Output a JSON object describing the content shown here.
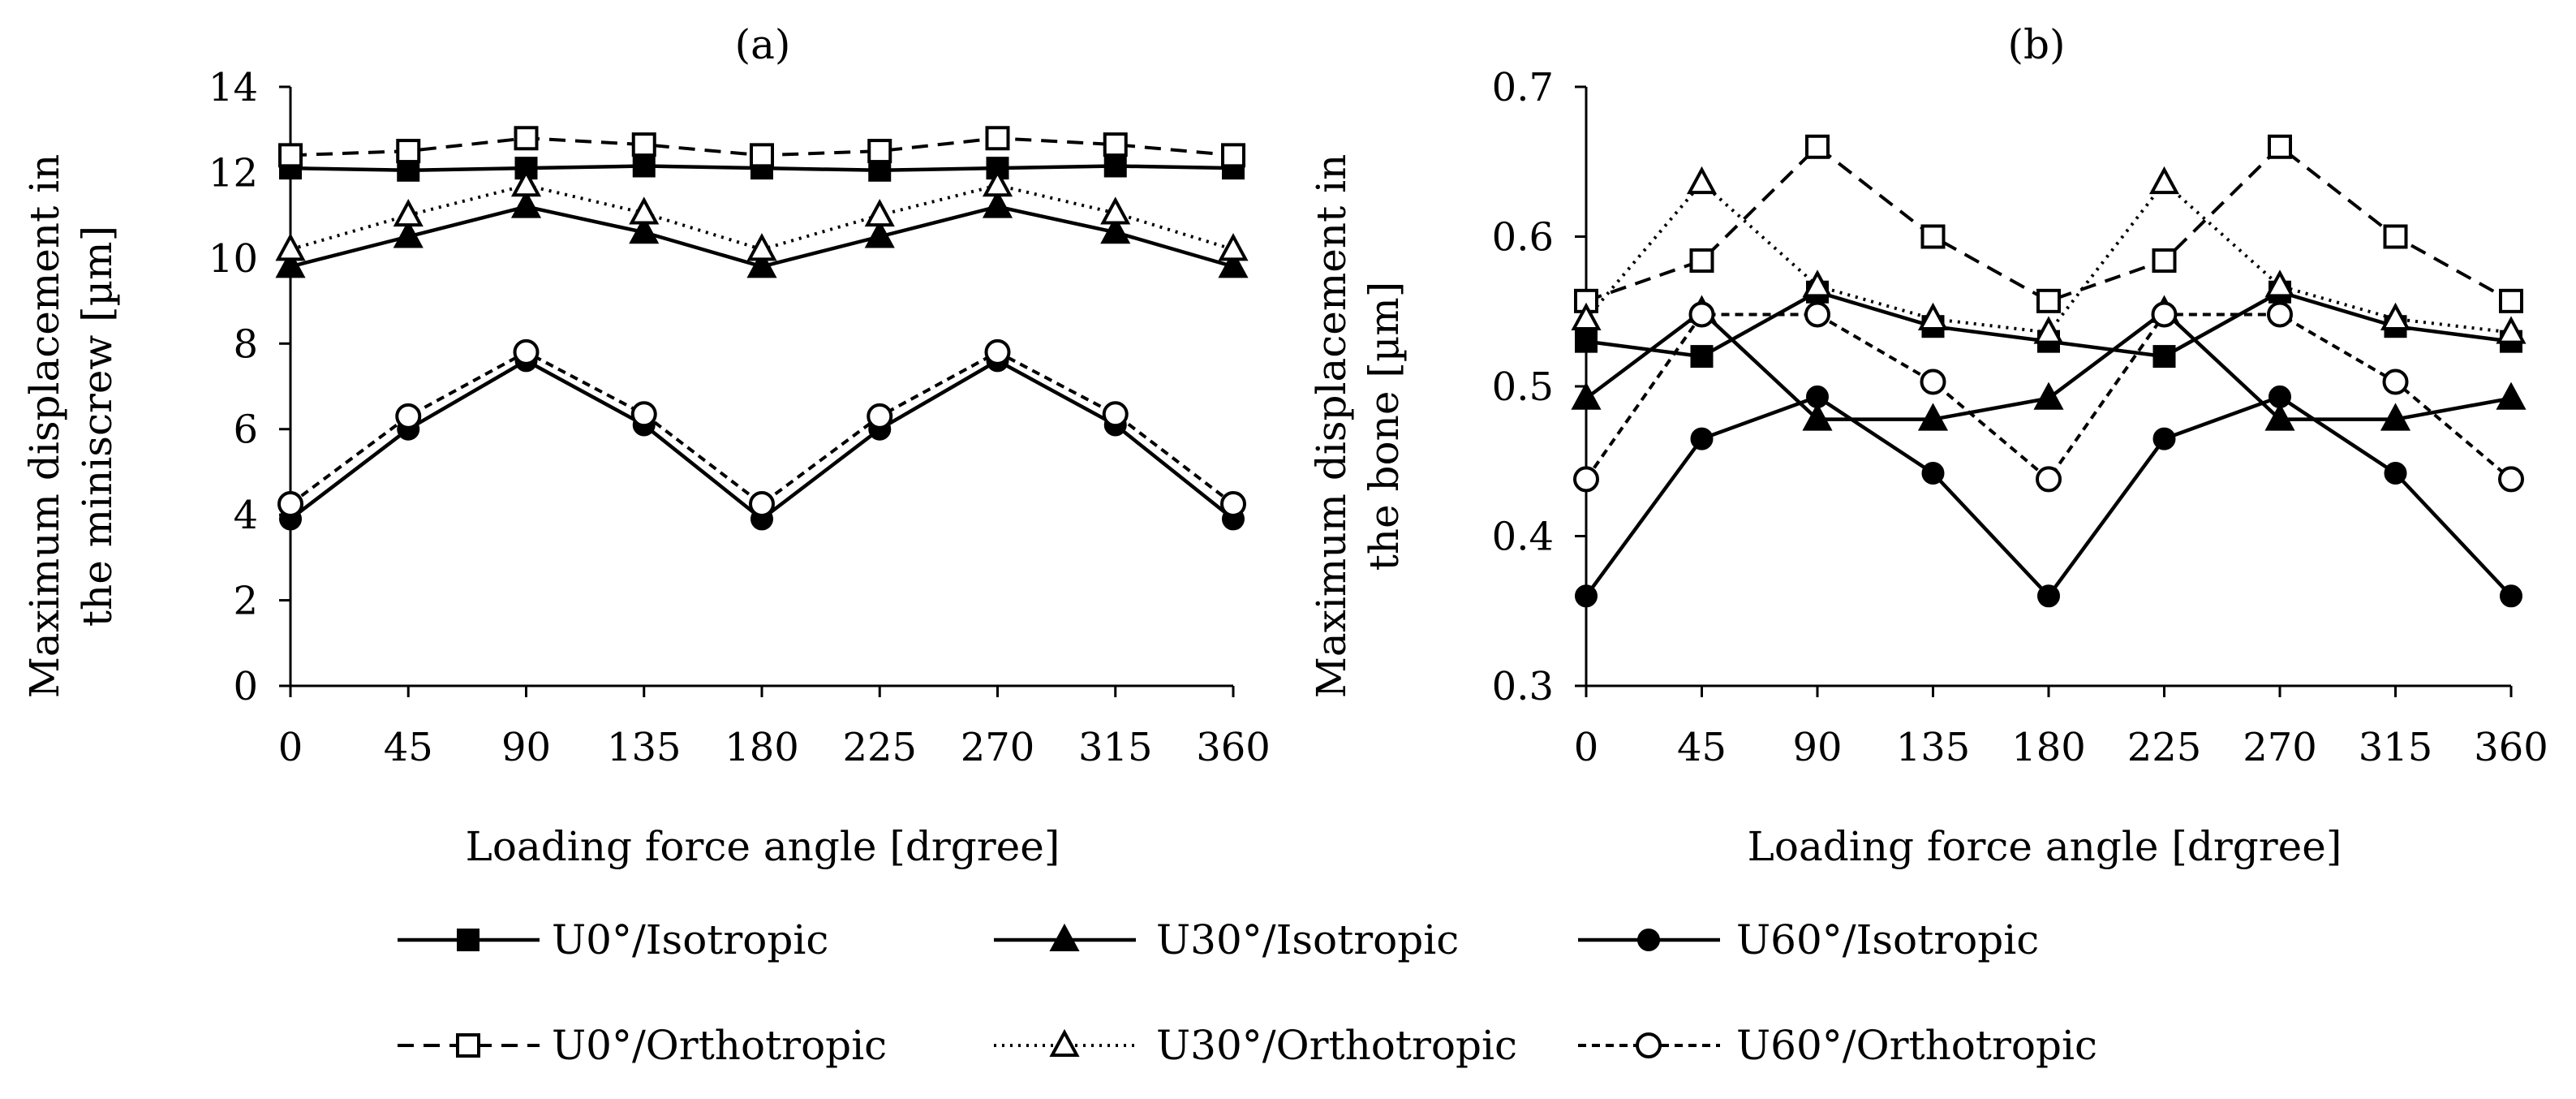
{
  "chart_data": [
    {
      "type": "line",
      "panel_label": "(a)",
      "title": "",
      "xlabel": "Loading force angle [drgree]",
      "ylabel_line1": "Maximum displacement in",
      "ylabel_line2": "the miniscrew [µm]",
      "x": [
        0,
        45,
        90,
        135,
        180,
        225,
        270,
        315,
        360
      ],
      "x_tick_labels": [
        "0",
        "45",
        "90",
        "135",
        "180",
        "225",
        "270",
        "315",
        "360"
      ],
      "ylim": [
        0,
        14
      ],
      "y_ticks": [
        0,
        2,
        4,
        6,
        8,
        10,
        12,
        14
      ],
      "y_tick_labels": [
        "0",
        "2",
        "4",
        "6",
        "8",
        "10",
        "12",
        "14"
      ],
      "grid": false,
      "series": [
        {
          "name": "U0°/Isotropic",
          "values": [
            12.1,
            12.05,
            12.1,
            12.15,
            12.1,
            12.05,
            12.1,
            12.15,
            12.1
          ]
        },
        {
          "name": "U30°/Isotropic",
          "values": [
            9.8,
            10.5,
            11.2,
            10.6,
            9.8,
            10.5,
            11.2,
            10.6,
            9.8
          ]
        },
        {
          "name": "U60°/Isotropic",
          "values": [
            3.9,
            6.0,
            7.6,
            6.1,
            3.9,
            6.0,
            7.6,
            6.1,
            3.9
          ]
        },
        {
          "name": "U0°/Orthotropic",
          "values": [
            12.4,
            12.5,
            12.8,
            12.65,
            12.4,
            12.5,
            12.8,
            12.65,
            12.4
          ]
        },
        {
          "name": "U30°/Orthotropic",
          "values": [
            10.2,
            11.0,
            11.7,
            11.05,
            10.2,
            11.0,
            11.7,
            11.05,
            10.2
          ]
        },
        {
          "name": "U60°/Orthotropic",
          "values": [
            4.25,
            6.3,
            7.8,
            6.35,
            4.25,
            6.3,
            7.8,
            6.35,
            4.25
          ]
        }
      ]
    },
    {
      "type": "line",
      "panel_label": "(b)",
      "title": "",
      "xlabel": "Loading force angle [drgree]",
      "ylabel_line1": "Maximum displacement in",
      "ylabel_line2": "the bone [µm]",
      "x": [
        0,
        45,
        90,
        135,
        180,
        225,
        270,
        315,
        360
      ],
      "x_tick_labels": [
        "0",
        "45",
        "90",
        "135",
        "180",
        "225",
        "270",
        "315",
        "360"
      ],
      "ylim": [
        0.3,
        0.7
      ],
      "y_ticks": [
        0.3,
        0.4,
        0.5,
        0.6,
        0.7
      ],
      "y_tick_labels": [
        "0.3",
        "0.4",
        "0.5",
        "0.6",
        "0.7"
      ],
      "grid": false,
      "series": [
        {
          "name": "U0°/Isotropic",
          "values": [
            0.53,
            0.52,
            0.563,
            0.54,
            0.53,
            0.52,
            0.563,
            0.54,
            0.53
          ]
        },
        {
          "name": "U30°/Isotropic",
          "values": [
            0.492,
            0.55,
            0.478,
            0.478,
            0.492,
            0.55,
            0.478,
            0.478,
            0.492
          ]
        },
        {
          "name": "U60°/Isotropic",
          "values": [
            0.36,
            0.465,
            0.493,
            0.442,
            0.36,
            0.465,
            0.493,
            0.442,
            0.36
          ]
        },
        {
          "name": "U0°/Orthotropic",
          "values": [
            0.557,
            0.584,
            0.66,
            0.6,
            0.557,
            0.584,
            0.66,
            0.6,
            0.557
          ]
        },
        {
          "name": "U30°/Orthotropic",
          "values": [
            0.545,
            0.636,
            0.567,
            0.545,
            0.536,
            0.636,
            0.567,
            0.545,
            0.536
          ]
        },
        {
          "name": "U60°/Orthotropic",
          "values": [
            0.438,
            0.548,
            0.548,
            0.503,
            0.438,
            0.548,
            0.548,
            0.503,
            0.438
          ]
        }
      ]
    }
  ],
  "legend": {
    "placement": "bottom",
    "items": [
      {
        "label": "U0°/Isotropic",
        "marker": "square-filled",
        "line": "solid"
      },
      {
        "label": "U30°/Isotropic",
        "marker": "triangle-filled",
        "line": "solid"
      },
      {
        "label": "U60°/Isotropic",
        "marker": "circle-filled",
        "line": "solid"
      },
      {
        "label": "U0°/Orthotropic",
        "marker": "square-open",
        "line": "long-dash"
      },
      {
        "label": "U30°/Orthotropic",
        "marker": "triangle-open",
        "line": "dotted"
      },
      {
        "label": "U60°/Orthotropic",
        "marker": "circle-open",
        "line": "short-dash"
      }
    ]
  },
  "colors": {
    "ink": "#000000",
    "background": "#ffffff"
  }
}
